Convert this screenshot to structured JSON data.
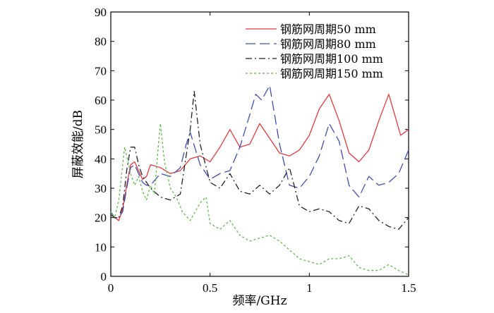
{
  "chart_data": {
    "type": "line",
    "title": "",
    "xlabel": "频率/GHz",
    "ylabel": "屏蔽效能/dB",
    "xlim": [
      0,
      1.5
    ],
    "ylim": [
      0,
      90
    ],
    "xticks": [
      0,
      0.5,
      1,
      1.5
    ],
    "xtick_labels": [
      "0",
      "0.5",
      "1",
      "1.5"
    ],
    "yticks": [
      0,
      10,
      20,
      30,
      40,
      50,
      60,
      70,
      80,
      90
    ],
    "ytick_labels": [
      "0",
      "10",
      "20",
      "30",
      "40",
      "50",
      "60",
      "70",
      "80",
      "90"
    ],
    "grid": false,
    "legend_position": "top-right",
    "series": [
      {
        "name": "钢筋网周期50 mm",
        "color": "#e8383d",
        "dash": "solid",
        "x": [
          0,
          0.02,
          0.04,
          0.06,
          0.08,
          0.1,
          0.12,
          0.14,
          0.16,
          0.18,
          0.2,
          0.25,
          0.3,
          0.35,
          0.4,
          0.45,
          0.5,
          0.55,
          0.6,
          0.65,
          0.7,
          0.75,
          0.8,
          0.85,
          0.9,
          0.95,
          1.0,
          1.05,
          1.1,
          1.15,
          1.2,
          1.25,
          1.3,
          1.35,
          1.4,
          1.43,
          1.46,
          1.5
        ],
        "y": [
          21,
          20,
          19,
          23,
          31,
          38,
          39,
          36,
          33,
          34,
          38,
          37,
          35,
          36,
          40,
          41,
          39,
          44,
          50,
          44,
          45,
          52,
          47,
          42,
          41,
          43,
          48,
          57,
          62,
          53,
          42,
          39,
          43,
          53,
          62,
          55,
          48,
          50
        ]
      },
      {
        "name": "钢筋网周期80 mm",
        "color": "#3f4db3",
        "dash": "long-dash",
        "x": [
          0,
          0.02,
          0.04,
          0.06,
          0.08,
          0.1,
          0.12,
          0.14,
          0.16,
          0.18,
          0.2,
          0.25,
          0.3,
          0.35,
          0.38,
          0.4,
          0.45,
          0.5,
          0.55,
          0.6,
          0.65,
          0.7,
          0.73,
          0.76,
          0.8,
          0.85,
          0.9,
          0.95,
          1.0,
          1.05,
          1.1,
          1.15,
          1.2,
          1.25,
          1.3,
          1.35,
          1.4,
          1.45,
          1.5
        ],
        "y": [
          22,
          20,
          20,
          22,
          30,
          37,
          38,
          35,
          32,
          31,
          31,
          35,
          34,
          37,
          45,
          49,
          38,
          33,
          35,
          36,
          44,
          55,
          62,
          60,
          65,
          45,
          31,
          30,
          34,
          41,
          52,
          46,
          31,
          27,
          34,
          31,
          32,
          35,
          43
        ]
      },
      {
        "name": "钢筋网周期100 mm",
        "color": "#222222",
        "dash": "dash-dot",
        "x": [
          0,
          0.02,
          0.04,
          0.06,
          0.08,
          0.1,
          0.12,
          0.14,
          0.16,
          0.2,
          0.25,
          0.3,
          0.35,
          0.4,
          0.42,
          0.45,
          0.5,
          0.55,
          0.6,
          0.65,
          0.7,
          0.75,
          0.8,
          0.85,
          0.9,
          0.95,
          1.0,
          1.05,
          1.1,
          1.15,
          1.2,
          1.25,
          1.3,
          1.35,
          1.4,
          1.45,
          1.5
        ],
        "y": [
          21,
          20,
          20,
          24,
          36,
          44,
          44,
          38,
          34,
          30,
          27,
          26,
          28,
          50,
          63,
          45,
          32,
          30,
          35,
          29,
          28,
          31,
          28,
          31,
          37,
          24,
          22,
          23,
          22,
          19,
          18,
          24,
          23,
          19,
          17,
          16,
          20
        ]
      },
      {
        "name": "钢筋网周期150 mm",
        "color": "#5dbb46",
        "dash": "dotted",
        "x": [
          0,
          0.02,
          0.04,
          0.06,
          0.07,
          0.08,
          0.1,
          0.12,
          0.14,
          0.16,
          0.18,
          0.2,
          0.22,
          0.24,
          0.25,
          0.27,
          0.3,
          0.33,
          0.36,
          0.4,
          0.45,
          0.48,
          0.5,
          0.55,
          0.6,
          0.65,
          0.7,
          0.75,
          0.8,
          0.85,
          0.9,
          0.95,
          1.0,
          1.05,
          1.1,
          1.15,
          1.2,
          1.25,
          1.3,
          1.35,
          1.4,
          1.45,
          1.5
        ],
        "y": [
          22,
          20,
          26,
          38,
          44,
          41,
          35,
          31,
          34,
          29,
          26,
          31,
          28,
          45,
          52,
          39,
          30,
          27,
          22,
          19,
          25,
          27,
          18,
          16,
          19,
          14,
          12,
          13,
          14,
          12,
          9,
          6,
          5,
          4,
          6,
          6,
          7,
          3,
          2,
          2,
          4,
          2,
          0.5
        ]
      }
    ]
  }
}
